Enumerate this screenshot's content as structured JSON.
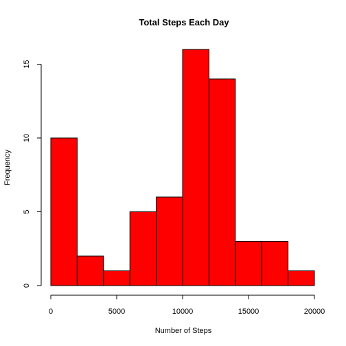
{
  "chart_data": {
    "type": "bar",
    "subtype": "histogram",
    "title": "Total Steps Each Day",
    "xlabel": "Number of Steps",
    "ylabel": "Frequency",
    "bin_edges": [
      0,
      2000,
      4000,
      6000,
      8000,
      10000,
      12000,
      14000,
      16000,
      18000,
      20000
    ],
    "values": [
      10,
      2,
      1,
      5,
      6,
      16,
      14,
      3,
      3,
      1
    ],
    "xlim": [
      0,
      20000
    ],
    "ylim": [
      0,
      16
    ],
    "xticks": [
      0,
      5000,
      10000,
      15000,
      20000
    ],
    "xtick_labels": [
      "0",
      "5000",
      "10000",
      "15000",
      "20000"
    ],
    "yticks": [
      0,
      5,
      10,
      15
    ],
    "ytick_labels": [
      "0",
      "5",
      "10",
      "15"
    ],
    "grid": false,
    "legend": "none",
    "colors": {
      "bar_fill": "#ff0000",
      "bar_stroke": "#000000"
    }
  }
}
